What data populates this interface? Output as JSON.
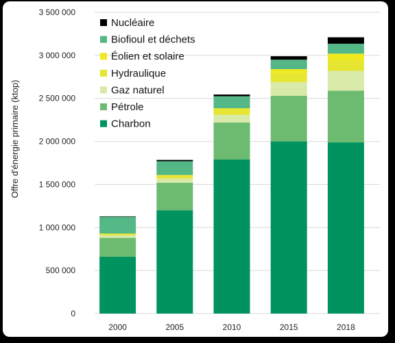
{
  "chart_data": {
    "type": "bar",
    "stacked": true,
    "categories": [
      "2000",
      "2005",
      "2010",
      "2015",
      "2018"
    ],
    "ylabel": "Offre d'énergie primaire (ktop)",
    "xlabel": "",
    "ylim": [
      0,
      3500000
    ],
    "yticks": [
      {
        "value": 0,
        "label": "0"
      },
      {
        "value": 500000,
        "label": "500 000"
      },
      {
        "value": 1000000,
        "label": "1 000 000"
      },
      {
        "value": 1500000,
        "label": "1 500 000"
      },
      {
        "value": 2000000,
        "label": "2 000 000"
      },
      {
        "value": 2500000,
        "label": "2 500 000"
      },
      {
        "value": 3000000,
        "label": "3 000 000"
      },
      {
        "value": 3500000,
        "label": "3 500 000"
      }
    ],
    "grid": true,
    "legend_position": "top-left",
    "series": [
      {
        "name": "Charbon",
        "color": "#00935f",
        "values": [
          660000,
          1200000,
          1790000,
          2000000,
          1990000
        ]
      },
      {
        "name": "Pétrole",
        "color": "#6dbb71",
        "values": [
          220000,
          320000,
          430000,
          530000,
          600000
        ]
      },
      {
        "name": "Gaz naturel",
        "color": "#d9e9a8",
        "values": [
          30000,
          50000,
          90000,
          160000,
          230000
        ]
      },
      {
        "name": "Hydraulique",
        "color": "#e6e531",
        "values": [
          20000,
          35000,
          65000,
          100000,
          120000
        ]
      },
      {
        "name": "Éolien et solaire",
        "color": "#efe91f",
        "values": [
          0,
          5000,
          10000,
          50000,
          80000
        ]
      },
      {
        "name": "Biofioul et déchets",
        "color": "#54b786",
        "values": [
          195000,
          160000,
          140000,
          110000,
          115000
        ]
      },
      {
        "name": "Nucléaire",
        "color": "#000000",
        "values": [
          5000,
          15000,
          20000,
          40000,
          75000
        ]
      }
    ],
    "legend_order": [
      "Nucléaire",
      "Biofioul et déchets",
      "Éolien et solaire",
      "Hydraulique",
      "Gaz naturel",
      "Pétrole",
      "Charbon"
    ]
  }
}
